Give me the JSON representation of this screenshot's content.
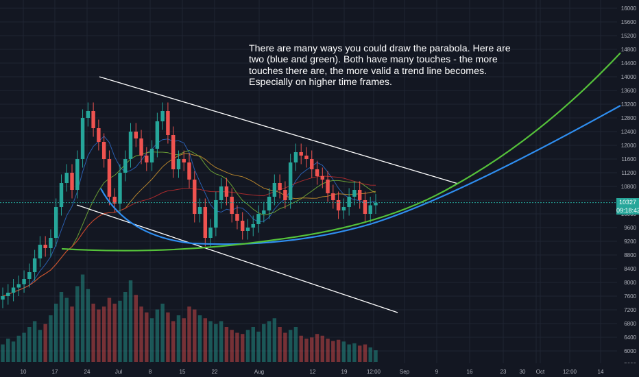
{
  "annotation": "There are many ways you could draw the parabola. Here are two (blue and green). Both have many touches - the more touches there are, the more valid a trend line becomes. Especially on higher time frames.",
  "last_price_label": "10327",
  "countdown_label": "09:18:42",
  "colors": {
    "background": "#131722",
    "grid": "#1f2433",
    "up": "#26a69a",
    "down": "#ef5350",
    "parabola_blue": "#2f8ef0",
    "parabola_green": "#55c23a",
    "trendline": "#ffffff",
    "price_line": "#26a69a",
    "axis_text": "#b2b5be"
  },
  "chart_data": {
    "type": "candlestick",
    "title": "",
    "y_axis_ticks": [
      "16000",
      "15600",
      "15200",
      "14800",
      "14400",
      "14000",
      "13600",
      "13200",
      "12800",
      "12400",
      "12000",
      "11600",
      "11200",
      "10800",
      "10400",
      "10000",
      "9600",
      "9200",
      "8800",
      "8400",
      "8000",
      "7600",
      "7200",
      "6800",
      "6400",
      "6000",
      "5600"
    ],
    "x_axis_ticks": [
      "10",
      "17",
      "24",
      "Jul",
      "8",
      "15",
      "22",
      "Aug",
      "12",
      "19",
      "12:00",
      "Sep",
      "9",
      "16",
      "23",
      "30",
      "Oct",
      "12:00",
      "14"
    ],
    "ylim": [
      5500,
      16200
    ],
    "last_price": 10327,
    "close_series": [
      7600,
      7700,
      7850,
      7950,
      8100,
      8300,
      8700,
      9100,
      9000,
      9300,
      10200,
      10900,
      11200,
      10700,
      11600,
      12800,
      13000,
      12500,
      12100,
      11600,
      10500,
      10300,
      11200,
      11600,
      12400,
      12200,
      11700,
      11500,
      11900,
      12700,
      13000,
      12300,
      11300,
      11600,
      11500,
      11000,
      10000,
      10200,
      9300,
      9600,
      10400,
      10800,
      10500,
      10000,
      9800,
      9500,
      9600,
      9700,
      10000,
      10100,
      10500,
      10900,
      10700,
      10400,
      11500,
      11800,
      11700,
      11600,
      11300,
      11100,
      11000,
      10600,
      10400,
      10100,
      10200,
      10500,
      10700,
      10400,
      10000,
      10250,
      10327
    ],
    "volume_series": [
      30,
      40,
      35,
      45,
      50,
      60,
      70,
      55,
      65,
      80,
      100,
      120,
      110,
      95,
      130,
      150,
      125,
      100,
      90,
      95,
      110,
      100,
      105,
      120,
      140,
      115,
      95,
      85,
      75,
      90,
      100,
      85,
      70,
      80,
      75,
      95,
      90,
      80,
      75,
      70,
      65,
      70,
      60,
      55,
      50,
      48,
      55,
      60,
      52,
      65,
      70,
      75,
      60,
      50,
      55,
      60,
      45,
      40,
      42,
      48,
      45,
      40,
      36,
      38,
      35,
      30,
      32,
      28,
      30,
      25,
      20
    ],
    "trendlines": [
      {
        "x0": "24",
        "y0": 14000,
        "x1": "9",
        "y1": 10880
      },
      {
        "x0": "17",
        "y0": 9600,
        "x1": "30",
        "y1": 7100
      }
    ],
    "parabolas": [
      {
        "name": "blue",
        "points": [
          [
            120,
            10700
          ],
          [
            180,
            9500
          ],
          [
            280,
            9220
          ],
          [
            420,
            9550
          ],
          [
            540,
            9850
          ],
          [
            660,
            10500
          ],
          [
            800,
            11800
          ],
          [
            905,
            13100
          ]
        ]
      },
      {
        "name": "green",
        "points": [
          [
            90,
            8900
          ],
          [
            240,
            9000
          ],
          [
            400,
            9350
          ],
          [
            540,
            9900
          ],
          [
            660,
            10700
          ],
          [
            780,
            12300
          ],
          [
            905,
            14700
          ]
        ]
      }
    ]
  }
}
